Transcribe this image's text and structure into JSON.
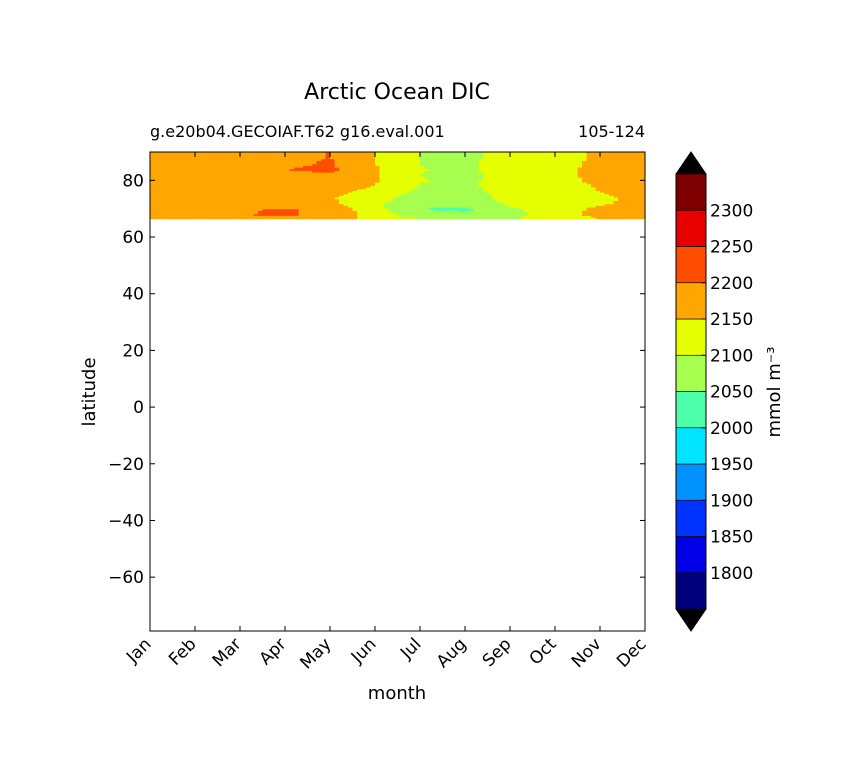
{
  "chart_data": {
    "type": "heatmap",
    "title": "Arctic Ocean DIC",
    "subtitle_left": "g.e20b04.GECOIAF.T62 g16.eval.001",
    "subtitle_right": "105-124",
    "xlabel": "month",
    "ylabel": "latitude",
    "x_categories": [
      "Jan",
      "Feb",
      "Mar",
      "Apr",
      "May",
      "Jun",
      "Jul",
      "Aug",
      "Sep",
      "Oct",
      "Nov",
      "Dec"
    ],
    "xlim": [
      0,
      11
    ],
    "ylim": [
      -79,
      90
    ],
    "yticks": [
      -60,
      -40,
      -20,
      0,
      20,
      40,
      60,
      80
    ],
    "data_lat_range": [
      66.5,
      90
    ],
    "colorbar": {
      "label": "mmol m⁻³",
      "levels": [
        1750,
        1775,
        1800,
        1825,
        1850,
        1875,
        1900,
        1925,
        1950,
        1975,
        2000,
        2025,
        2050,
        2075,
        2100,
        2125,
        2150,
        2175,
        2200,
        2225,
        2250,
        2275,
        2300,
        2325,
        2350
      ],
      "tick_values": [
        1800,
        1850,
        1900,
        1950,
        2000,
        2050,
        2100,
        2150,
        2200,
        2250,
        2300
      ],
      "tick_labels": [
        "1800",
        "1850",
        "1900",
        "1950",
        "2000",
        "2050",
        "2100",
        "2150",
        "2200",
        "2250",
        "2300"
      ],
      "colors": [
        "#00007f",
        "#0000e6",
        "#0033ff",
        "#0091ff",
        "#00e5ff",
        "#4dffa8",
        "#a6ff4f",
        "#e6ff00",
        "#ffa600",
        "#ff4d00",
        "#e60000",
        "#7f0000"
      ],
      "extend": "both",
      "under_color": "#000000",
      "over_color": "#000000"
    },
    "field": {
      "lat": [
        66.5,
        68,
        70,
        72,
        74,
        76,
        78,
        80,
        82,
        84,
        86,
        88,
        90
      ],
      "month_values": [
        [
          2180,
          2190,
          2185,
          2165,
          2160,
          2162,
          2165,
          2168,
          2170,
          2172,
          2170,
          2168,
          2168
        ],
        [
          2180,
          2192,
          2190,
          2168,
          2162,
          2165,
          2168,
          2170,
          2172,
          2175,
          2172,
          2170,
          2170
        ],
        [
          2185,
          2198,
          2195,
          2170,
          2165,
          2168,
          2172,
          2178,
          2180,
          2182,
          2178,
          2175,
          2175
        ],
        [
          2185,
          2205,
          2205,
          2175,
          2170,
          2175,
          2195,
          2185,
          2190,
          2200,
          2190,
          2188,
          2188
        ],
        [
          2180,
          2190,
          2185,
          2160,
          2155,
          2165,
          2180,
          2188,
          2190,
          2210,
          2205,
          2202,
          2202
        ],
        [
          2130,
          2125,
          2118,
          2110,
          2118,
          2130,
          2148,
          2155,
          2155,
          2155,
          2152,
          2150,
          2150
        ],
        [
          2100,
          2075,
          2050,
          2060,
          2080,
          2090,
          2098,
          2102,
          2100,
          2102,
          2100,
          2098,
          2098
        ],
        [
          2095,
          2060,
          2040,
          2065,
          2085,
          2090,
          2095,
          2092,
          2090,
          2090,
          2090,
          2090,
          2090
        ],
        [
          2100,
          2080,
          2090,
          2110,
          2110,
          2110,
          2110,
          2115,
          2115,
          2125,
          2120,
          2118,
          2118
        ],
        [
          2120,
          2125,
          2130,
          2125,
          2120,
          2120,
          2128,
          2135,
          2140,
          2140,
          2138,
          2135,
          2135
        ],
        [
          2150,
          2165,
          2160,
          2145,
          2145,
          2150,
          2155,
          2160,
          2160,
          2160,
          2158,
          2156,
          2156
        ],
        [
          2170,
          2180,
          2175,
          2160,
          2158,
          2160,
          2162,
          2165,
          2168,
          2170,
          2168,
          2166,
          2166
        ]
      ]
    }
  }
}
